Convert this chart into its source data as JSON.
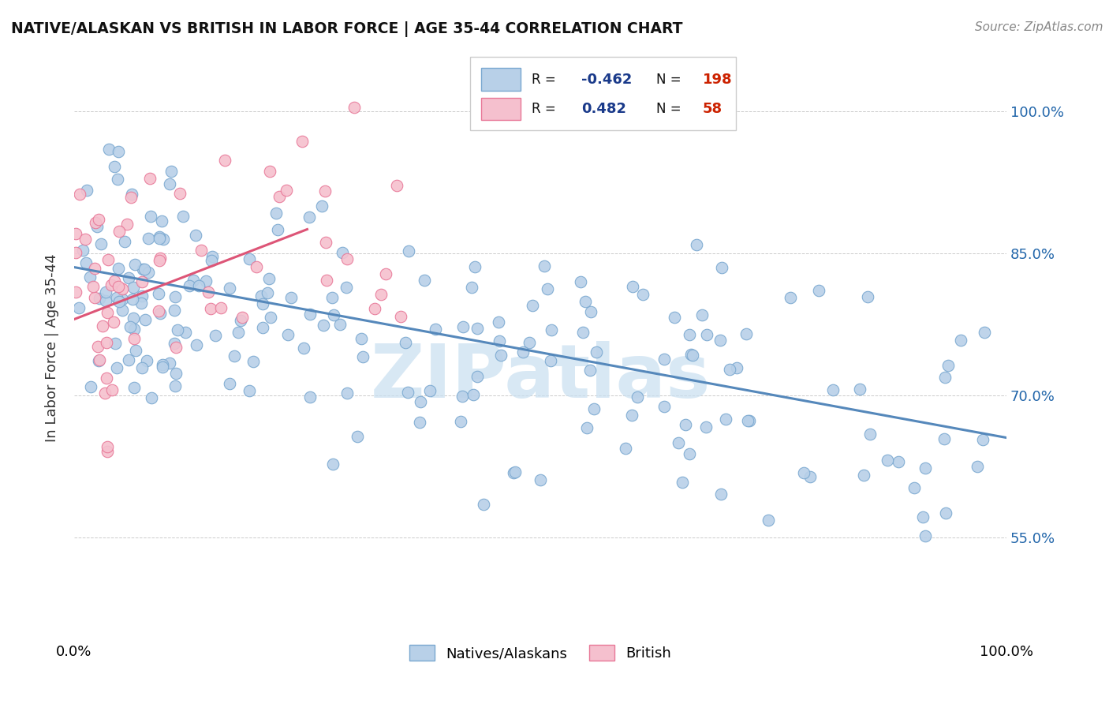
{
  "title": "NATIVE/ALASKAN VS BRITISH IN LABOR FORCE | AGE 35-44 CORRELATION CHART",
  "source_text": "Source: ZipAtlas.com",
  "ylabel": "In Labor Force | Age 35-44",
  "xlim": [
    0.0,
    1.0
  ],
  "ylim": [
    0.44,
    1.06
  ],
  "ytick_values": [
    0.55,
    0.7,
    0.85,
    1.0
  ],
  "ytick_labels_left": [
    "",
    "",
    "",
    ""
  ],
  "ytick_labels_right": [
    "55.0%",
    "70.0%",
    "85.0%",
    "100.0%"
  ],
  "xtick_labels": [
    "0.0%",
    "100.0%"
  ],
  "xtick_values": [
    0.0,
    1.0
  ],
  "blue_R": "-0.462",
  "blue_N": "198",
  "pink_R": "0.482",
  "pink_N": "58",
  "blue_color": "#b8d0e8",
  "pink_color": "#f5c0ce",
  "blue_edge_color": "#7aa8d0",
  "pink_edge_color": "#e87898",
  "blue_line_color": "#5588bb",
  "pink_line_color": "#dd5577",
  "legend_label_color": "#222222",
  "legend_R_color": "#1a3a8a",
  "legend_N_color": "#cc2200",
  "right_axis_color": "#2266aa",
  "background_color": "#ffffff",
  "grid_color": "#cccccc",
  "watermark": "ZIPatlas",
  "watermark_color": "#c8dff0",
  "blue_trend_start_y": 0.835,
  "blue_trend_end_y": 0.655,
  "pink_trend_start_x": 0.0,
  "pink_trend_start_y": 0.78,
  "pink_trend_end_x": 0.25,
  "pink_trend_end_y": 0.875
}
